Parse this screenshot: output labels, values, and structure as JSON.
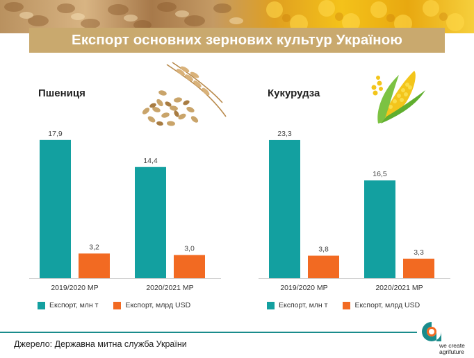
{
  "header": {
    "title": "Експорт основних зернових культур Україною"
  },
  "legend": {
    "volume": "Експорт, млн т",
    "value": "Експорт, млрд USD"
  },
  "colors": {
    "volume": "#13a0a0",
    "value": "#f26a22",
    "footer_line": "#1a8c8c",
    "title_box": "#c9a96e"
  },
  "chart_data": [
    {
      "type": "bar",
      "title": "Пшениця",
      "categories": [
        "2019/2020 МР",
        "2020/2021 МР"
      ],
      "series": [
        {
          "name": "Експорт, млн т",
          "values": [
            17.9,
            14.4
          ],
          "labels": [
            "17,9",
            "14,4"
          ]
        },
        {
          "name": "Експорт, млрд USD",
          "values": [
            3.2,
            3.0
          ],
          "labels": [
            "3,2",
            "3,0"
          ]
        }
      ],
      "ylim": [
        0,
        19.5
      ],
      "grid": false,
      "legend_position": "bottom"
    },
    {
      "type": "bar",
      "title": "Кукурудза",
      "categories": [
        "2019/2020 МР",
        "2020/2021 МР"
      ],
      "series": [
        {
          "name": "Експорт, млн т",
          "values": [
            23.3,
            16.5
          ],
          "labels": [
            "23,3",
            "16,5"
          ]
        },
        {
          "name": "Експорт, млрд USD",
          "values": [
            3.8,
            3.3
          ],
          "labels": [
            "3,8",
            "3,3"
          ]
        }
      ],
      "ylim": [
        0,
        25.4
      ],
      "grid": false,
      "legend_position": "bottom"
    }
  ],
  "footer": {
    "source": "Джерело: Державна митна служба України",
    "logo_text_1": "we create",
    "logo_text_2": "agrifuture"
  },
  "icons": [
    "wheat-icon",
    "corn-icon",
    "company-logo-icon"
  ]
}
